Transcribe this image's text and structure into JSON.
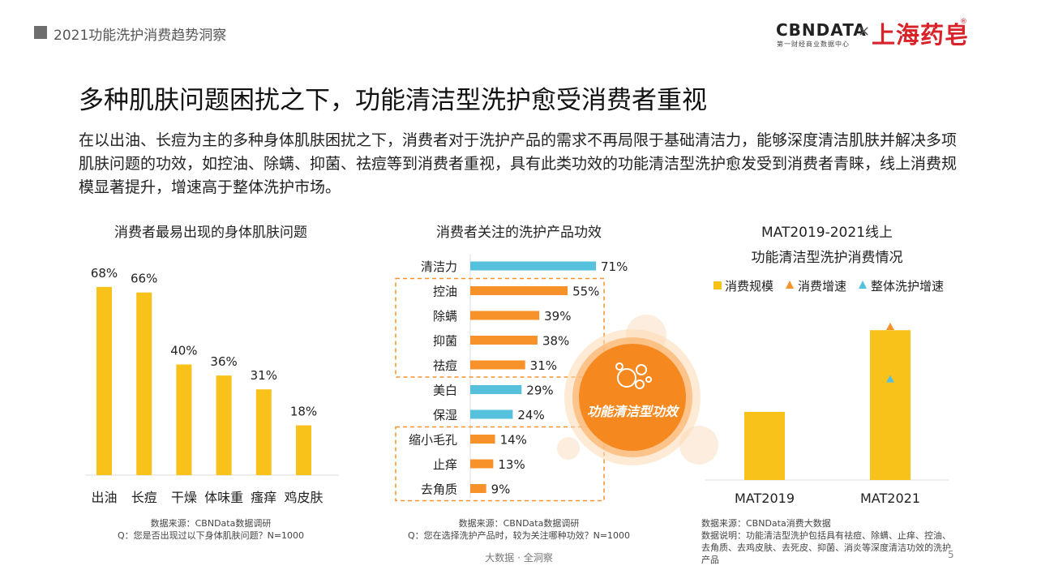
{
  "header": {
    "section": "2021功能洗护消费趋势洞察"
  },
  "logo": {
    "brand": "CBNDATA",
    "brand_sub": "第一财经商业数据中心",
    "times": "×",
    "partner": "上海药皂",
    "reg": "®"
  },
  "title": "多种肌肤问题困扰之下，功能清洁型洗护愈受消费者重视",
  "description": "在以出油、长痘为主的多种身体肌肤困扰之下，消费者对于洗护产品的需求不再局限于基础清洁力，能够深度清洁肌肤并解决多项肌肤问题的功效，如控油、除螨、抑菌、祛痘等到消费者重视，具有此类功效的功能清洁型洗护愈发受到消费者青睐，线上消费规模显著提升，增速高于整体洗护市场。",
  "colors": {
    "yellow": "#f8c21a",
    "orange": "#f7922a",
    "blue": "#55c1dc",
    "dash": "#f7922a"
  },
  "badge": {
    "label": "功能清洁型功效",
    "icon": "bubbles-icon"
  },
  "chart_data": [
    {
      "type": "bar",
      "title": "消费者最易出现的身体肌肤问题",
      "categories": [
        "出油",
        "长痘",
        "干燥",
        "体味重",
        "瘙痒",
        "鸡皮肤"
      ],
      "values": [
        68,
        66,
        40,
        36,
        31,
        18
      ],
      "value_labels": [
        "68%",
        "66%",
        "40%",
        "36%",
        "31%",
        "18%"
      ],
      "ylim": [
        0,
        75
      ],
      "source": "数据来源：CBNData数据调研",
      "note": "Q：您是否出现过以下身体肌肤问题？N=1000"
    },
    {
      "type": "bar",
      "orientation": "horizontal",
      "title": "消费者关注的洗护产品功效",
      "categories": [
        "清洁力",
        "控油",
        "除螨",
        "抑菌",
        "祛痘",
        "美白",
        "保湿",
        "缩小毛孔",
        "止痒",
        "去角质"
      ],
      "values": [
        71,
        55,
        39,
        38,
        31,
        29,
        24,
        14,
        13,
        9
      ],
      "value_labels": [
        "71%",
        "55%",
        "39%",
        "38%",
        "31%",
        "29%",
        "24%",
        "14%",
        "13%",
        "9%"
      ],
      "bar_colors": [
        "blue",
        "orange",
        "orange",
        "orange",
        "orange",
        "blue",
        "blue",
        "orange",
        "orange",
        "orange"
      ],
      "highlight_groups": [
        [
          "控油",
          "除螨",
          "抑菌",
          "祛痘"
        ],
        [
          "缩小毛孔",
          "止痒",
          "去角质"
        ]
      ],
      "xlim": [
        0,
        80
      ],
      "source": "数据来源：CBNData数据调研",
      "note": "Q：您在选择洗护产品时，较为关注哪种功效？N=1000"
    },
    {
      "type": "bar",
      "title_lines": [
        "MAT2019-2021线上",
        "功能清洁型洗护消费情况"
      ],
      "categories": [
        "MAT2019",
        "MAT2021"
      ],
      "series": [
        {
          "name": "消费规模",
          "type": "bar",
          "values": [
            1.0,
            2.2
          ]
        },
        {
          "name": "消费增速",
          "type": "marker",
          "values": [
            null,
            2.25
          ]
        },
        {
          "name": "整体洗护增速",
          "type": "marker",
          "values": [
            null,
            1.48
          ]
        }
      ],
      "ylim": [
        0,
        2.5
      ],
      "legend_position": "top",
      "source": "数据来源：CBNData消费大数据",
      "note": "数据说明：功能清洁型洗护包括具有祛痘、除螨、止痒、控油、去角质、去鸡皮肤、去死皮、抑菌、消炎等深度清洁功效的洗护产品"
    }
  ],
  "footer": {
    "center": "大数据 · 全洞察",
    "page": "5"
  }
}
